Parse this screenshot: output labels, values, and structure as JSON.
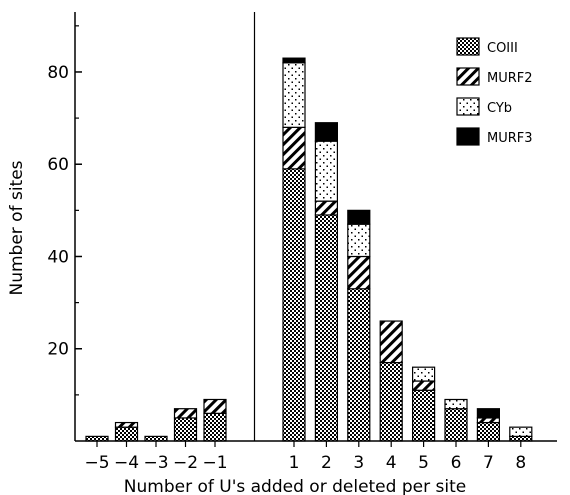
{
  "chart_data": {
    "type": "bar",
    "stacked": true,
    "xlabel": "Number of U's added or deleted per site",
    "ylabel": "Number of sites",
    "ylim": [
      0,
      93
    ],
    "yticks": [
      20,
      40,
      60,
      80
    ],
    "categories": [
      "-5",
      "-4",
      "-3",
      "-2",
      "-1",
      "1",
      "2",
      "3",
      "4",
      "5",
      "6",
      "7",
      "8"
    ],
    "divider_between": [
      "-1",
      "1"
    ],
    "legend_position": "top-right",
    "series": [
      {
        "name": "COIII",
        "pattern": "dense-dots",
        "values": [
          1,
          3,
          1,
          5,
          6,
          59,
          49,
          33,
          17,
          11,
          7,
          4,
          1
        ]
      },
      {
        "name": "MURF2",
        "pattern": "diagonal-hatch",
        "values": [
          0,
          1,
          0,
          2,
          3,
          9,
          3,
          7,
          9,
          2,
          0,
          1,
          0
        ]
      },
      {
        "name": "CYb",
        "pattern": "sparse-dots",
        "values": [
          0,
          0,
          0,
          0,
          0,
          14,
          13,
          7,
          0,
          3,
          2,
          0,
          2
        ]
      },
      {
        "name": "MURF3",
        "pattern": "solid",
        "values": [
          0,
          0,
          0,
          0,
          0,
          1,
          4,
          3,
          0,
          0,
          0,
          2,
          0
        ]
      }
    ]
  }
}
